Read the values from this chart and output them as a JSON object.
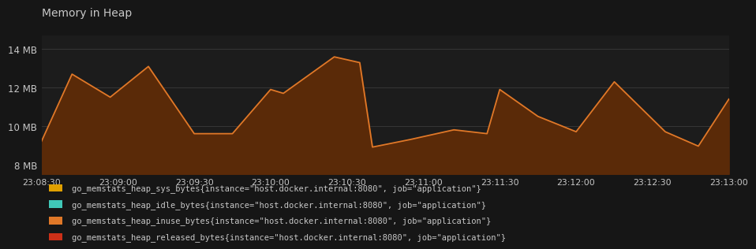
{
  "title": "Memory in Heap",
  "background_color": "#161616",
  "plot_bg_color": "#1c1c1c",
  "grid_color": "#3a3a3a",
  "text_color": "#c8c8c8",
  "border_color": "#2a2a2a",
  "ylim": [
    7500000,
    14700000
  ],
  "yticks": [
    8000000,
    10000000,
    12000000,
    14000000
  ],
  "ytick_labels": [
    "8 MB",
    "10 MB",
    "12 MB",
    "14 MB"
  ],
  "xtick_labels": [
    "23:08:30",
    "23:09:00",
    "23:09:30",
    "23:10:00",
    "23:10:30",
    "23:11:00",
    "23:11:30",
    "23:12:00",
    "23:12:30",
    "23:13:00"
  ],
  "inuse_color": "#e07828",
  "inuse_fill_color": "#5a2a08",
  "sys_color": "#e0a000",
  "idle_color": "#40c8b8",
  "released_color": "#cc3018",
  "x_inuse": [
    0,
    12,
    27,
    42,
    60,
    75,
    90,
    95,
    115,
    125,
    130,
    145,
    162,
    175,
    180,
    195,
    210,
    225,
    245,
    258,
    270
  ],
  "y_inuse": [
    9200000,
    12700000,
    11500000,
    13100000,
    9600000,
    9600000,
    11900000,
    11700000,
    13600000,
    13300000,
    8900000,
    9300000,
    9800000,
    9600000,
    11900000,
    10500000,
    9700000,
    12300000,
    9700000,
    8950000,
    11400000
  ],
  "legend_entries": [
    {
      "label": "go_memstats_heap_sys_bytes{instance=\"host.docker.internal:8080\", job=\"application\"}",
      "color": "#e0a000"
    },
    {
      "label": "go_memstats_heap_idle_bytes{instance=\"host.docker.internal:8080\", job=\"application\"}",
      "color": "#40c8b8"
    },
    {
      "label": "go_memstats_heap_inuse_bytes{instance=\"host.docker.internal:8080\", job=\"application\"}",
      "color": "#e07828"
    },
    {
      "label": "go_memstats_heap_released_bytes{instance=\"host.docker.internal:8080\", job=\"application\"}",
      "color": "#cc3018"
    }
  ],
  "figwidth": 9.52,
  "figheight": 3.19,
  "dpi": 100
}
